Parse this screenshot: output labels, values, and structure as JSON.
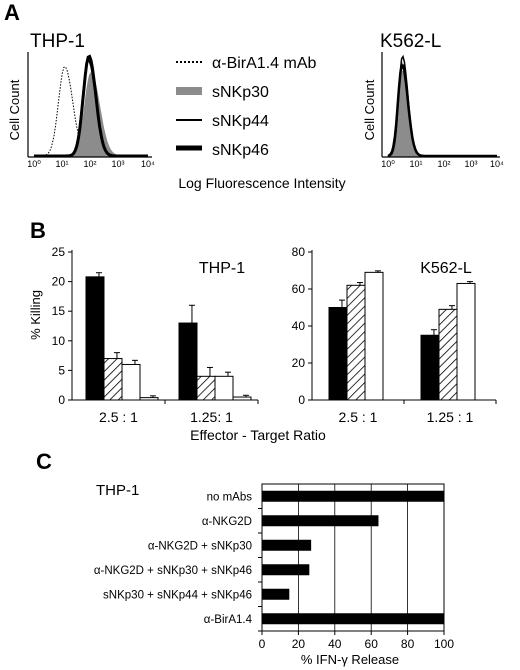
{
  "panels": {
    "a": "A",
    "b": "B",
    "c": "C"
  },
  "colors": {
    "black": "#000000",
    "grey": "#8c8c8c",
    "white": "#ffffff"
  },
  "chart_data": [
    {
      "id": "thp1-histogram",
      "type": "line",
      "title": "THP-1",
      "ylabel": "Cell Count",
      "x_ticks": [
        "10⁰",
        "10¹",
        "10²",
        "10³",
        "10⁴"
      ],
      "x_scale": "log",
      "xlim": [
        1,
        10000
      ],
      "legend": [
        {
          "label": "α-BirA1.4 mAb",
          "style": "dotted"
        },
        {
          "label": "sNKp30",
          "style": "grey filled"
        },
        {
          "label": "sNKp44",
          "style": "thin black"
        },
        {
          "label": "sNKp46",
          "style": "thick black"
        }
      ],
      "series": [
        {
          "label": "α-BirA1.4 mAb",
          "peak_x": 12
        },
        {
          "label": "sNKp30",
          "peak_x": 100
        },
        {
          "label": "sNKp44",
          "peak_x": 80
        },
        {
          "label": "sNKp46",
          "peak_x": 85
        }
      ]
    },
    {
      "id": "k562l-histogram",
      "type": "line",
      "title": "K562-L",
      "ylabel": "Cell Count",
      "x_ticks": [
        "10⁰",
        "10¹",
        "10²",
        "10³",
        "10⁴"
      ],
      "x_scale": "log",
      "xlim": [
        1,
        10000
      ],
      "series": [
        {
          "label": "α-BirA1.4 mAb",
          "peak_x": 3.2
        },
        {
          "label": "sNKp30",
          "peak_x": 3.3
        },
        {
          "label": "sNKp44",
          "peak_x": 3.4
        },
        {
          "label": "sNKp46",
          "peak_x": 3.3
        }
      ]
    },
    {
      "id": "histogram-shared-axis",
      "xlabel": "Log Fluorescence Intensity"
    },
    {
      "id": "thp1-killing",
      "type": "bar",
      "title": "THP-1",
      "ylabel": "% Killing",
      "ylim": [
        0,
        25
      ],
      "yticks": [
        0,
        5,
        10,
        15,
        20,
        25
      ],
      "categories": [
        "2.5 : 1",
        "1.25: 1"
      ],
      "series": [
        {
          "fill": "black",
          "values": [
            20.8,
            13
          ],
          "errors": [
            0.7,
            3
          ]
        },
        {
          "fill": "hatched",
          "values": [
            7,
            4
          ],
          "errors": [
            1,
            1.5
          ]
        },
        {
          "fill": "white",
          "values": [
            6,
            4
          ],
          "errors": [
            0.7,
            0.7
          ]
        },
        {
          "fill": "white",
          "values": [
            0.4,
            0.5
          ],
          "errors": [
            0.3,
            0.3
          ]
        }
      ]
    },
    {
      "id": "k562l-killing",
      "type": "bar",
      "title": "K562-L",
      "ylim": [
        0,
        80
      ],
      "yticks": [
        0,
        20,
        40,
        60,
        80
      ],
      "categories": [
        "2.5 : 1",
        "1.25 : 1"
      ],
      "series": [
        {
          "fill": "black",
          "values": [
            50,
            35
          ],
          "errors": [
            4,
            3
          ]
        },
        {
          "fill": "hatched",
          "values": [
            62,
            49
          ],
          "errors": [
            1.5,
            2
          ]
        },
        {
          "fill": "white",
          "values": [
            69,
            63
          ],
          "errors": [
            0.8,
            1
          ]
        }
      ]
    },
    {
      "id": "killing-shared-axis",
      "xlabel": "Effector - Target Ratio"
    },
    {
      "id": "ifn-release",
      "type": "bar",
      "orientation": "horizontal",
      "title": "THP-1",
      "xlabel": "% IFN-γ Release",
      "xlim": [
        0,
        100
      ],
      "xticks": [
        0,
        20,
        40,
        60,
        80,
        100
      ],
      "grid": true,
      "categories": [
        "no mAbs",
        "α-NKG2D",
        "α-NKG2D + sNKp30",
        "α-NKG2D + sNKp30 + sNKp46",
        "sNKp30 + sNKp44 + sNKp46",
        "α-BirA1.4"
      ],
      "values": [
        100,
        64,
        27,
        26,
        15,
        100
      ]
    }
  ]
}
